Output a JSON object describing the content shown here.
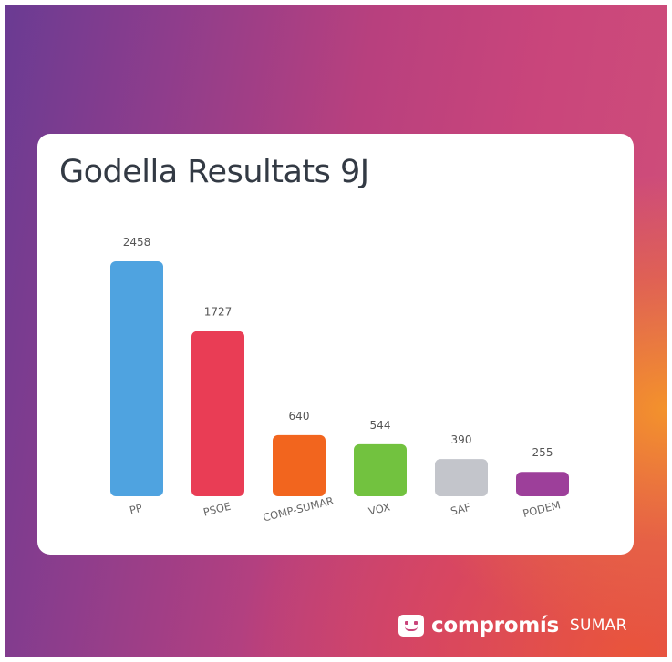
{
  "chart_data": {
    "type": "bar",
    "title": "Godella Resultats 9J",
    "xlabel": "",
    "ylabel": "",
    "categories": [
      "PP",
      "PSOE",
      "COMP-SUMAR",
      "VOX",
      "SAF",
      "PODEM"
    ],
    "values": [
      2458,
      1727,
      640,
      544,
      390,
      255
    ],
    "ylim": [
      0,
      2458
    ],
    "colors": [
      "#4fa3e0",
      "#e93d55",
      "#f2651e",
      "#72c23f",
      "#c3c5cb",
      "#9d3f9a"
    ],
    "grid": false,
    "legend": "none"
  },
  "brand": {
    "name": "compromís",
    "sub": "SUMAR",
    "icon": "smiley-logo-icon"
  }
}
